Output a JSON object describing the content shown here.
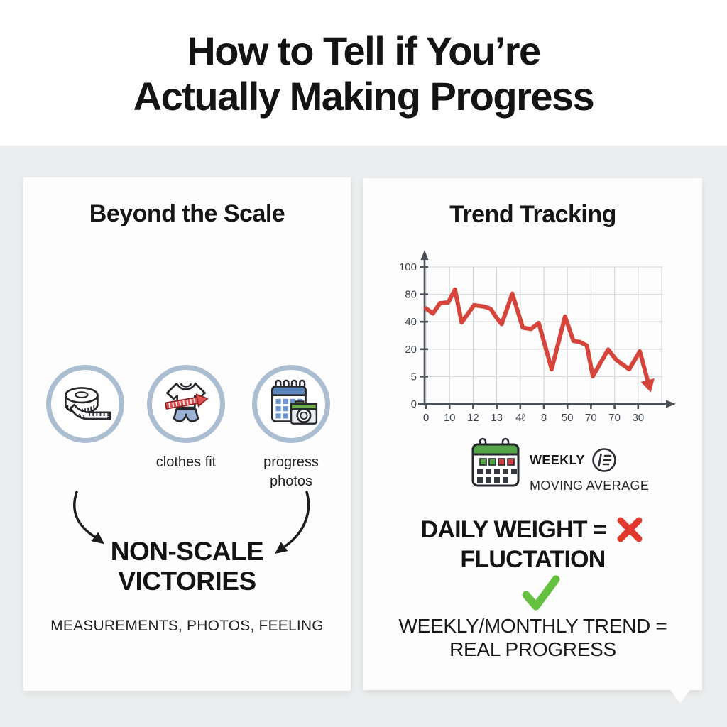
{
  "title": {
    "line1": "How to Tell if You’re",
    "line2": "Actually Making Progress"
  },
  "left_panel": {
    "heading": "Beyond the Scale",
    "icons": [
      {
        "icon": "measuring-tape-icon",
        "label": ""
      },
      {
        "icon": "clothes-fit-icon",
        "label": "clothes fit"
      },
      {
        "icon": "progress-photos-icon",
        "label": "progress photos"
      }
    ],
    "arrow_icons": [
      "curved-arrow-left-icon",
      "curved-arrow-right-icon"
    ],
    "victory": {
      "line1": "NON-SCALE",
      "line2": "VICTORIES"
    },
    "footnote": "MEASUREMENTS, PHOTOS, FEELING"
  },
  "right_panel": {
    "heading": "Trend Tracking",
    "legend": {
      "calendar_icon": "weekly-calendar-icon",
      "weekly": "WEEKLY",
      "average_icon": "moving-average-icon",
      "average": "MOVING AVERAGE"
    },
    "daily": {
      "line1": "DAILY WEIGHT =",
      "x_icon": "red-x-icon",
      "line2": "FLUCTATION"
    },
    "check_icon": "green-check-icon",
    "weekly_trend": {
      "line1": "WEEKLY/MONTHLY TREND =",
      "line2": "REAL PROGRESS"
    }
  },
  "chart_data": {
    "type": "line",
    "title": "",
    "xlabel": "",
    "ylabel": "",
    "y_tick_labels": [
      "100",
      "80",
      "40",
      "20",
      "5",
      "0"
    ],
    "x_tick_labels": [
      "0",
      "10",
      "12",
      "13",
      "4ℓ",
      "8",
      "50",
      "70",
      "70",
      "30"
    ],
    "grid": true,
    "legend_position": "none",
    "line_color": "#d6453c",
    "trend": "downward zigzag ending in arrowhead",
    "coordinate_system": "normalized plot fractions, x 0-1 left to right, y 0-1 top (100 line) to bottom (0 line)",
    "points_normalized": [
      [
        0.0,
        0.302
      ],
      [
        0.03,
        0.34
      ],
      [
        0.061,
        0.264
      ],
      [
        0.096,
        0.259
      ],
      [
        0.125,
        0.164
      ],
      [
        0.154,
        0.405
      ],
      [
        0.208,
        0.279
      ],
      [
        0.254,
        0.29
      ],
      [
        0.279,
        0.305
      ],
      [
        0.305,
        0.371
      ],
      [
        0.327,
        0.417
      ],
      [
        0.373,
        0.195
      ],
      [
        0.418,
        0.443
      ],
      [
        0.454,
        0.453
      ],
      [
        0.487,
        0.409
      ],
      [
        0.543,
        0.747
      ],
      [
        0.601,
        0.362
      ],
      [
        0.637,
        0.54
      ],
      [
        0.665,
        0.547
      ],
      [
        0.695,
        0.574
      ],
      [
        0.721,
        0.798
      ],
      [
        0.787,
        0.603
      ],
      [
        0.822,
        0.678
      ],
      [
        0.878,
        0.747
      ],
      [
        0.924,
        0.616
      ],
      [
        0.959,
        0.836
      ]
    ]
  },
  "colors": {
    "page_bg": "#ebedee",
    "card_bg": "#fdfdfd",
    "title_text": "#141414",
    "accent_red": "#e0382d",
    "accent_green": "#64c13f",
    "chart_line": "#d6453c",
    "grid_line": "#d9dcde",
    "axis_line": "#4a5058",
    "tick_text": "#3e444c",
    "circle_ring": "#abbdd1",
    "calendar_blue": "#5b84ba",
    "calendar_cell": "#6b95cc",
    "camera_green": "#70ab50",
    "weekly_green": "#55a647",
    "weekly_cell_dark": "#35393e",
    "weekly_cell_red": "#cf3f45",
    "shorts_blue": "#9ab1d6",
    "tape_red": "#e05050"
  }
}
